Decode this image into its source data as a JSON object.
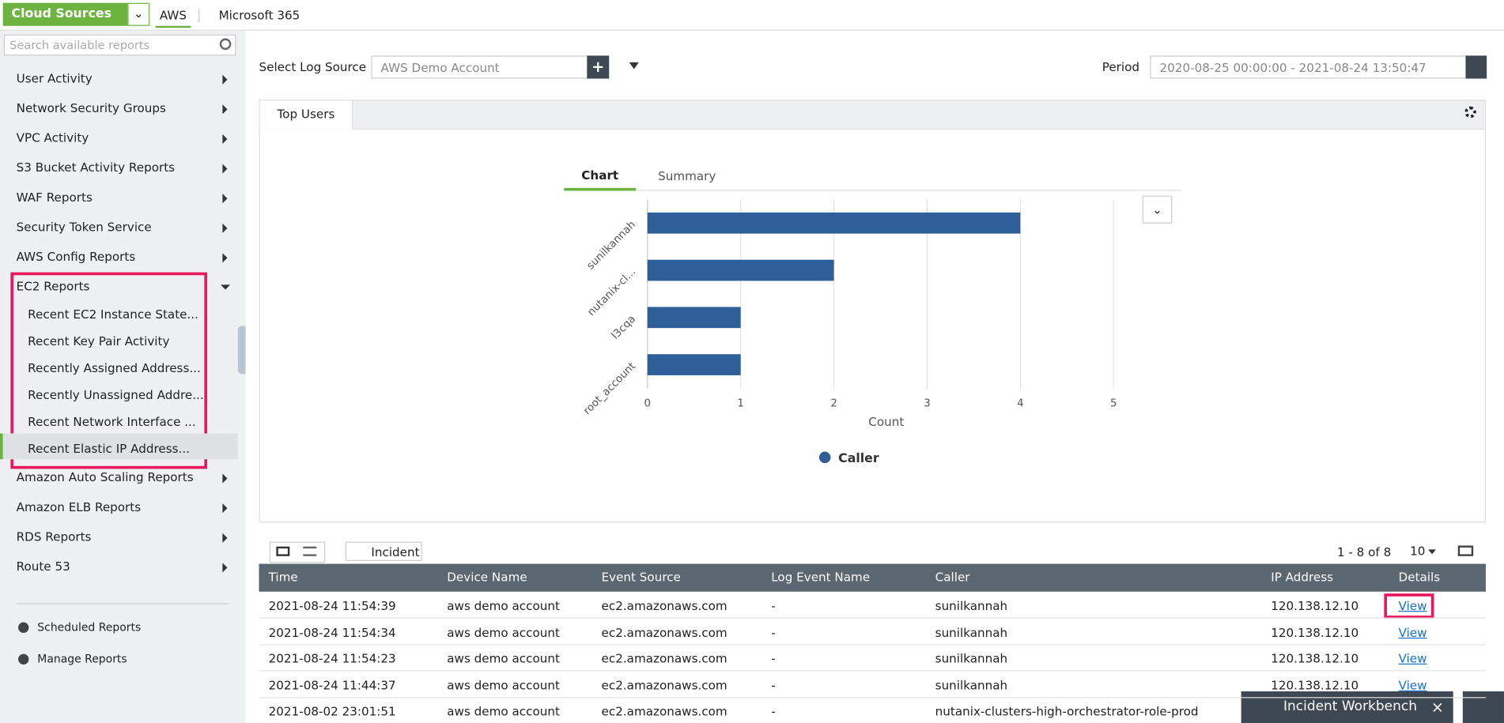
{
  "top_bar": {
    "source_menu": "Cloud Sources",
    "tabs": [
      "AWS",
      "Microsoft 365"
    ]
  },
  "sidebar": {
    "search_placeholder": "Search available reports",
    "items": [
      {
        "label": "User Activity"
      },
      {
        "label": "Network Security Groups"
      },
      {
        "label": "VPC Activity"
      },
      {
        "label": "S3 Bucket Activity Reports"
      },
      {
        "label": "WAF Reports"
      },
      {
        "label": "Security Token Service"
      },
      {
        "label": "AWS Config Reports"
      },
      {
        "label": "EC2 Reports",
        "children": [
          "Recent EC2 Instance State...",
          "Recent Key Pair Activity",
          "Recently Assigned Address...",
          "Recently Unassigned Addre...",
          "Recent Network Interface ...",
          "Recent Elastic IP Address..."
        ]
      },
      {
        "label": "Amazon Auto Scaling Reports"
      },
      {
        "label": "Amazon ELB Reports"
      },
      {
        "label": "RDS Reports"
      },
      {
        "label": "Route 53"
      }
    ],
    "links": [
      "Scheduled Reports",
      "Manage Reports"
    ]
  },
  "filters": {
    "log_source_label": "Select Log Source",
    "log_source": "AWS Demo Account",
    "period_label": "Period",
    "period": "2020-08-25 00:00:00 - 2021-08-24 13:50:47"
  },
  "panel": {
    "tab": "Top Users",
    "view_tabs": [
      "Chart",
      "Summary"
    ]
  },
  "chart_data": {
    "type": "bar",
    "orientation": "horizontal",
    "categories": [
      "sunilkannah",
      "nutanix-cl...",
      "l3cqa",
      "root_account"
    ],
    "series": [
      {
        "name": "Caller",
        "color": "#2e5f99",
        "values": [
          4,
          2,
          1,
          1
        ]
      }
    ],
    "xlim": [
      0,
      5
    ],
    "xticks": [
      0,
      1,
      2,
      3,
      4,
      5
    ],
    "xlabel": "Count",
    "grid": true
  },
  "table": {
    "incident_button": "Incident",
    "pagination": "1 - 8 of 8",
    "page_size": 10,
    "columns": [
      "Time",
      "Device Name",
      "Event Source",
      "Log Event Name",
      "Caller",
      "IP Address",
      "Details"
    ],
    "rows": [
      [
        "2021-08-24 11:54:39",
        "aws demo account",
        "ec2.amazonaws.com",
        "-",
        "sunilkannah",
        "120.138.12.10",
        "View"
      ],
      [
        "2021-08-24 11:54:34",
        "aws demo account",
        "ec2.amazonaws.com",
        "-",
        "sunilkannah",
        "120.138.12.10",
        "View"
      ],
      [
        "2021-08-24 11:54:23",
        "aws demo account",
        "ec2.amazonaws.com",
        "-",
        "sunilkannah",
        "120.138.12.10",
        "View"
      ],
      [
        "2021-08-24 11:44:37",
        "aws demo account",
        "ec2.amazonaws.com",
        "-",
        "sunilkannah",
        "120.138.12.10",
        "View"
      ],
      [
        "2021-08-02 23:01:51",
        "aws demo account",
        "ec2.amazonaws.com",
        "-",
        "nutanix-clusters-high-orchestrator-role-prod",
        "",
        ""
      ]
    ]
  },
  "incident_workbench": "Incident Workbench"
}
